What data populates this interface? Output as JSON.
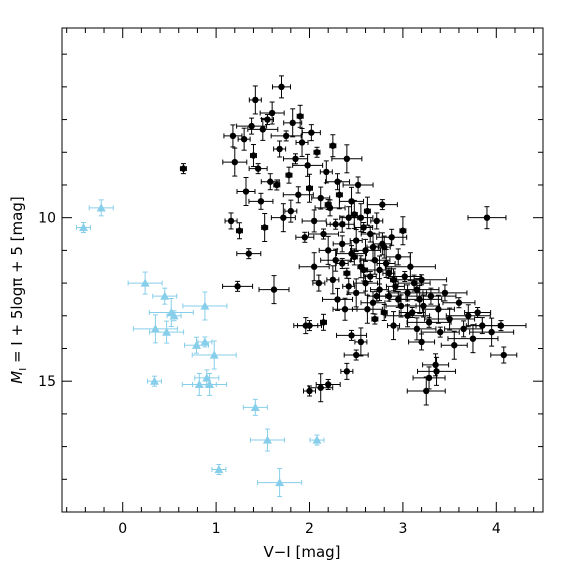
{
  "chart_data": {
    "type": "scatter",
    "xlabel": "V−I  [mag]",
    "ylabel_parts": {
      "m": "M",
      "sub": "I",
      "rest": " = I + 5logπ + 5  [mag]"
    },
    "xlim": [
      -0.65,
      4.5
    ],
    "ylim": [
      19.0,
      4.2
    ],
    "y_inverted": true,
    "x_ticks": [
      0,
      1,
      2,
      3,
      4
    ],
    "x_tick_labels": [
      "0",
      "1",
      "2",
      "3",
      "4"
    ],
    "y_ticks": [
      10,
      15
    ],
    "y_tick_labels": [
      "10",
      "15"
    ],
    "grid": false,
    "legend": "none",
    "series": [
      {
        "marker": "circle",
        "color": "#000000",
        "points": [
          [
            0.65,
            8.5
          ],
          [
            1.16,
            10.1
          ],
          [
            1.18,
            7.5
          ],
          [
            1.2,
            8.3
          ],
          [
            1.23,
            12.1
          ],
          [
            1.25,
            10.4
          ],
          [
            1.3,
            7.6
          ],
          [
            1.32,
            9.2
          ],
          [
            1.35,
            11.1
          ],
          [
            1.38,
            7.2
          ],
          [
            1.4,
            8.1
          ],
          [
            1.42,
            6.4
          ],
          [
            1.45,
            8.5
          ],
          [
            1.48,
            9.5
          ],
          [
            1.5,
            7.3
          ],
          [
            1.52,
            10.3
          ],
          [
            1.55,
            7.0
          ],
          [
            1.58,
            8.9
          ],
          [
            1.6,
            6.8
          ],
          [
            1.62,
            12.2
          ],
          [
            1.65,
            9.0
          ],
          [
            1.68,
            7.9
          ],
          [
            1.7,
            6.0
          ],
          [
            1.72,
            10.0
          ],
          [
            1.75,
            7.5
          ],
          [
            1.78,
            8.7
          ],
          [
            1.8,
            9.8
          ],
          [
            1.82,
            7.1
          ],
          [
            1.85,
            8.2
          ],
          [
            1.88,
            9.3
          ],
          [
            1.9,
            6.9
          ],
          [
            1.92,
            7.7
          ],
          [
            1.95,
            10.6
          ],
          [
            1.96,
            13.3
          ],
          [
            1.98,
            8.4
          ],
          [
            2.0,
            9.1
          ],
          [
            2.0,
            15.3
          ],
          [
            2.02,
            7.4
          ],
          [
            2.05,
            10.1
          ],
          [
            2.05,
            11.5
          ],
          [
            2.08,
            8.0
          ],
          [
            2.1,
            12.0
          ],
          [
            2.12,
            9.4
          ],
          [
            2.12,
            15.2
          ],
          [
            2.15,
            10.5
          ],
          [
            2.15,
            13.2
          ],
          [
            2.18,
            8.6
          ],
          [
            2.2,
            11.0
          ],
          [
            2.2,
            15.1
          ],
          [
            2.22,
            9.7
          ],
          [
            2.25,
            7.8
          ],
          [
            2.25,
            11.9
          ],
          [
            2.28,
            10.2
          ],
          [
            2.3,
            8.9
          ],
          [
            2.3,
            12.5
          ],
          [
            2.32,
            9.3
          ],
          [
            2.35,
            11.4
          ],
          [
            2.35,
            10.8
          ],
          [
            2.38,
            12.8
          ],
          [
            2.4,
            8.2
          ],
          [
            2.4,
            11.7
          ],
          [
            2.4,
            14.7
          ],
          [
            2.42,
            10.0
          ],
          [
            2.45,
            9.5
          ],
          [
            2.45,
            13.6
          ],
          [
            2.48,
            11.2
          ],
          [
            2.5,
            10.7
          ],
          [
            2.5,
            12.3
          ],
          [
            2.5,
            14.2
          ],
          [
            2.52,
            9.0
          ],
          [
            2.55,
            11.5
          ],
          [
            2.55,
            13.8
          ],
          [
            2.58,
            10.3
          ],
          [
            2.6,
            12.0
          ],
          [
            2.6,
            11.0
          ],
          [
            2.62,
            9.8
          ],
          [
            2.65,
            11.8
          ],
          [
            2.65,
            10.5
          ],
          [
            2.68,
            12.6
          ],
          [
            2.7,
            11.3
          ],
          [
            2.7,
            13.1
          ],
          [
            2.72,
            10.1
          ],
          [
            2.75,
            12.2
          ],
          [
            2.75,
            11.6
          ],
          [
            2.78,
            9.6
          ],
          [
            2.8,
            12.9
          ],
          [
            2.8,
            10.9
          ],
          [
            2.82,
            11.4
          ],
          [
            2.85,
            12.4
          ],
          [
            2.88,
            10.6
          ],
          [
            2.9,
            11.9
          ],
          [
            2.9,
            13.3
          ],
          [
            2.92,
            12.1
          ],
          [
            2.95,
            11.2
          ],
          [
            2.98,
            12.7
          ],
          [
            3.0,
            10.4
          ],
          [
            3.02,
            11.8
          ],
          [
            3.05,
            12.3
          ],
          [
            3.05,
            13.0
          ],
          [
            3.08,
            11.5
          ],
          [
            3.1,
            12.9
          ],
          [
            3.12,
            12.0
          ],
          [
            3.15,
            13.4
          ],
          [
            3.18,
            12.5
          ],
          [
            3.2,
            11.9
          ],
          [
            3.2,
            13.8
          ],
          [
            3.22,
            12.7
          ],
          [
            3.25,
            15.3
          ],
          [
            3.28,
            13.2
          ],
          [
            3.3,
            12.4
          ],
          [
            3.35,
            14.5
          ],
          [
            3.38,
            12.8
          ],
          [
            3.4,
            13.5
          ],
          [
            3.45,
            12.3
          ],
          [
            3.5,
            13.1
          ],
          [
            3.55,
            13.9
          ],
          [
            3.6,
            12.6
          ],
          [
            3.65,
            13.4
          ],
          [
            3.7,
            13.0
          ],
          [
            3.75,
            13.7
          ],
          [
            3.8,
            12.9
          ],
          [
            3.85,
            13.3
          ],
          [
            3.9,
            10.0
          ],
          [
            3.95,
            13.5
          ],
          [
            4.05,
            13.3
          ],
          [
            4.08,
            14.2
          ],
          [
            3.28,
            14.9
          ],
          [
            3.36,
            14.7
          ],
          [
            2.0,
            13.3
          ],
          [
            2.45,
            11.1
          ],
          [
            2.58,
            11.6
          ],
          [
            2.68,
            10.9
          ],
          [
            2.72,
            12.4
          ],
          [
            2.35,
            10.2
          ],
          [
            2.28,
            11.3
          ],
          [
            2.48,
            9.9
          ],
          [
            2.85,
            11.7
          ],
          [
            2.95,
            12.5
          ],
          [
            3.15,
            12.2
          ],
          [
            2.62,
            12.8
          ],
          [
            2.2,
            9.6
          ],
          [
            2.42,
            12.1
          ],
          [
            2.78,
            10.8
          ],
          [
            2.55,
            10.0
          ]
        ]
      },
      {
        "marker": "triangle",
        "color": "#87ceeb",
        "points": [
          [
            -0.42,
            10.3
          ],
          [
            -0.23,
            9.7
          ],
          [
            0.24,
            12.0
          ],
          [
            0.35,
            13.4
          ],
          [
            0.34,
            15.0
          ],
          [
            0.45,
            12.4
          ],
          [
            0.47,
            13.5
          ],
          [
            0.52,
            12.9
          ],
          [
            0.55,
            13.0
          ],
          [
            0.79,
            13.9
          ],
          [
            0.82,
            15.1
          ],
          [
            0.88,
            12.7
          ],
          [
            0.88,
            13.8
          ],
          [
            0.9,
            14.9
          ],
          [
            0.93,
            15.1
          ],
          [
            0.98,
            14.2
          ],
          [
            1.03,
            17.7
          ],
          [
            1.42,
            15.8
          ],
          [
            1.55,
            16.8
          ],
          [
            1.68,
            18.1
          ],
          [
            2.08,
            16.8
          ]
        ]
      }
    ]
  }
}
